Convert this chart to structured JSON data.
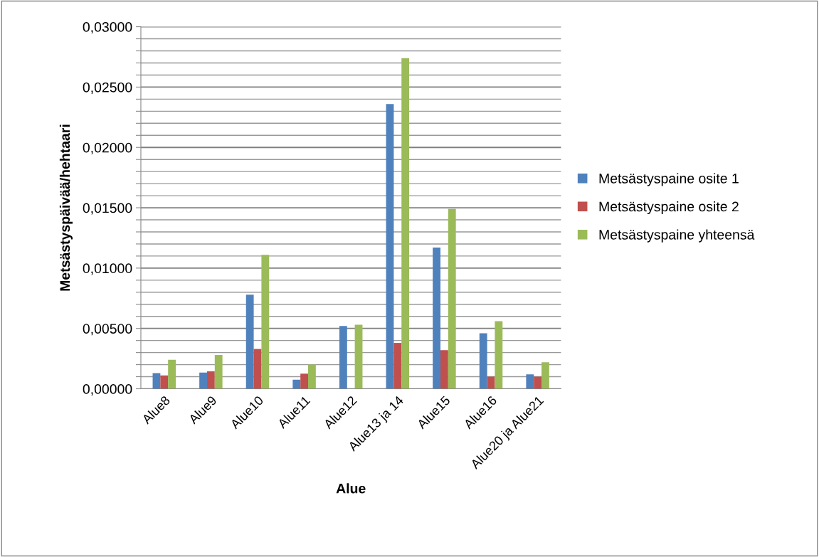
{
  "chart_data": {
    "type": "bar",
    "xlabel": "Alue",
    "ylabel": "Metsästyspäivää/hehtaari",
    "categories": [
      "Alue8",
      "Alue9",
      "Alue10",
      "Alue11",
      "Alue12",
      "Alue13 ja 14",
      "Alue15",
      "Alue16",
      "Alue20 ja Alue21"
    ],
    "series": [
      {
        "name": "Metsästyspaine osite 1",
        "color": "#4f81bd",
        "values": [
          0.0013,
          0.00135,
          0.0078,
          0.00075,
          0.0052,
          0.0236,
          0.0117,
          0.0046,
          0.0012
        ]
      },
      {
        "name": "Metsästyspaine osite 2",
        "color": "#c0504d",
        "values": [
          0.0011,
          0.00145,
          0.0033,
          0.00125,
          0,
          0.0038,
          0.0032,
          0.001,
          0.001
        ]
      },
      {
        "name": "Metsästyspaine yhteensä",
        "color": "#9bbb59",
        "values": [
          0.0024,
          0.0028,
          0.0111,
          0.002,
          0.0053,
          0.0274,
          0.0149,
          0.0056,
          0.0022
        ]
      }
    ],
    "ylim": [
      0,
      0.03
    ],
    "yticks": [
      {
        "value": 0,
        "label": "0,00000"
      },
      {
        "value": 0.001,
        "label": null
      },
      {
        "value": 0.002,
        "label": null
      },
      {
        "value": 0.003,
        "label": null
      },
      {
        "value": 0.004,
        "label": null
      },
      {
        "value": 0.005,
        "label": "0,00500"
      },
      {
        "value": 0.006,
        "label": null
      },
      {
        "value": 0.007,
        "label": null
      },
      {
        "value": 0.008,
        "label": null
      },
      {
        "value": 0.009,
        "label": null
      },
      {
        "value": 0.01,
        "label": "0,01000"
      },
      {
        "value": 0.011,
        "label": null
      },
      {
        "value": 0.012,
        "label": null
      },
      {
        "value": 0.013,
        "label": null
      },
      {
        "value": 0.014,
        "label": null
      },
      {
        "value": 0.015,
        "label": "0,01500"
      },
      {
        "value": 0.016,
        "label": null
      },
      {
        "value": 0.017,
        "label": null
      },
      {
        "value": 0.018,
        "label": null
      },
      {
        "value": 0.019,
        "label": null
      },
      {
        "value": 0.02,
        "label": "0,02000"
      },
      {
        "value": 0.021,
        "label": null
      },
      {
        "value": 0.022,
        "label": null
      },
      {
        "value": 0.023,
        "label": null
      },
      {
        "value": 0.024,
        "label": null
      },
      {
        "value": 0.025,
        "label": "0,02500"
      },
      {
        "value": 0.026,
        "label": null
      },
      {
        "value": 0.027,
        "label": null
      },
      {
        "value": 0.028,
        "label": null
      },
      {
        "value": 0.029,
        "label": null
      },
      {
        "value": 0.03,
        "label": "0,03000"
      }
    ],
    "grid": "y",
    "legend": "right"
  }
}
